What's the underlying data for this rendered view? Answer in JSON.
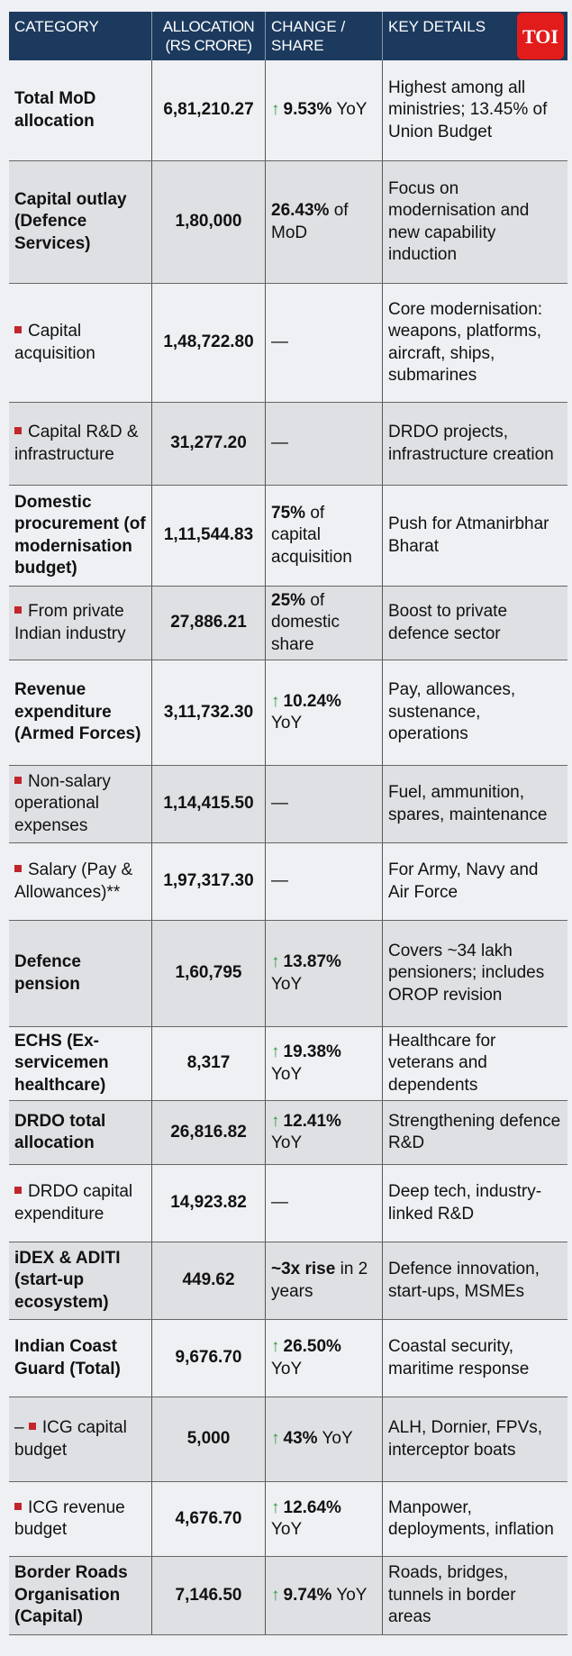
{
  "header": {
    "category": "CATEGORY",
    "allocation": "ALLOCATION (RS CRORE)",
    "change": "CHANGE / SHARE",
    "details": "KEY DETAILS",
    "logo": "TOI"
  },
  "colors": {
    "header_bg": "#1c3a5e",
    "bullet": "#c0262b",
    "arrow": "#2e9a3c",
    "logo_bg": "#e21b1b"
  },
  "rows": [
    {
      "category": "Total MoD allocation",
      "bold": true,
      "sub": false,
      "prefix": "",
      "allocation": "6,81,210.27",
      "up": true,
      "change_bold": "9.53%",
      "change_rest": "YoY",
      "details": "Highest among all ministries; 13.45% of Union Budget"
    },
    {
      "category": "Capital outlay (Defence Services)",
      "bold": true,
      "sub": false,
      "prefix": "",
      "allocation": "1,80,000",
      "up": false,
      "change_bold": "26.43%",
      "change_rest": "of MoD",
      "details": "Focus on modernisation and new capability induction"
    },
    {
      "category": "Capital acquisition",
      "bold": false,
      "sub": true,
      "prefix": "",
      "allocation": "1,48,722.80",
      "up": false,
      "change_bold": "",
      "change_rest": "—",
      "details": "Core modernisation: weapons, platforms, aircraft, ships, submarines"
    },
    {
      "category": "Capital R&D & infrastructure",
      "bold": false,
      "sub": true,
      "prefix": "",
      "allocation": "31,277.20",
      "up": false,
      "change_bold": "",
      "change_rest": "—",
      "details": "DRDO projects, infrastructure creation"
    },
    {
      "category": "Domestic procurement (of modernisation budget)",
      "bold": true,
      "sub": false,
      "prefix": "",
      "allocation": "1,11,544.83",
      "up": false,
      "change_bold": "75%",
      "change_rest": "of capital acquisition",
      "details": "Push for Atmanirbhar Bharat"
    },
    {
      "category": "From private Indian industry",
      "bold": false,
      "sub": true,
      "prefix": "",
      "allocation": "27,886.21",
      "up": false,
      "change_bold": "25%",
      "change_rest": "of domestic share",
      "details": "Boost to private defence sector"
    },
    {
      "category": "Revenue expenditure (Armed Forces)",
      "bold": true,
      "sub": false,
      "prefix": "",
      "allocation": "3,11,732.30",
      "up": true,
      "change_bold": "10.24%",
      "change_rest": "YoY",
      "details": "Pay, allowances, sustenance, operations"
    },
    {
      "category": "Non-salary operational expenses",
      "bold": false,
      "sub": true,
      "prefix": "",
      "allocation": "1,14,415.50",
      "up": false,
      "change_bold": "",
      "change_rest": "—",
      "details": "Fuel, ammunition, spares, maintenance"
    },
    {
      "category": "Salary (Pay & Allowances)**",
      "bold": false,
      "sub": true,
      "prefix": "",
      "allocation": "1,97,317.30",
      "up": false,
      "change_bold": "",
      "change_rest": "—",
      "details": "For Army, Navy and Air Force"
    },
    {
      "category": "Defence pension",
      "bold": true,
      "sub": false,
      "prefix": "",
      "allocation": "1,60,795",
      "up": true,
      "change_bold": "13.87%",
      "change_rest": "YoY",
      "details": "Covers ~34 lakh pensioners; includes OROP revision"
    },
    {
      "category": "ECHS (Ex-servicemen healthcare)",
      "bold": true,
      "sub": false,
      "prefix": "",
      "allocation": "8,317",
      "up": true,
      "change_bold": "19.38%",
      "change_rest": "YoY",
      "details": "Healthcare for veterans and dependents"
    },
    {
      "category": "DRDO total allocation",
      "bold": true,
      "sub": false,
      "prefix": "",
      "allocation": "26,816.82",
      "up": true,
      "change_bold": "12.41%",
      "change_rest": "YoY",
      "details": "Strengthening defence R&D"
    },
    {
      "category": "DRDO capital expenditure",
      "bold": false,
      "sub": true,
      "prefix": "",
      "allocation": "14,923.82",
      "up": false,
      "change_bold": "",
      "change_rest": "—",
      "details": "Deep tech, industry-linked R&D"
    },
    {
      "category": "iDEX & ADITI (start-up ecosystem)",
      "bold": true,
      "sub": false,
      "prefix": "",
      "allocation": "449.62",
      "up": false,
      "change_bold": "~3x rise",
      "change_rest": "in 2 years",
      "details": "Defence innovation, start-ups, MSMEs"
    },
    {
      "category": "Indian Coast Guard (Total)",
      "bold": true,
      "sub": false,
      "prefix": "",
      "allocation": "9,676.70",
      "up": true,
      "change_bold": "26.50%",
      "change_rest": "YoY",
      "details": "Coastal security, maritime response"
    },
    {
      "category": "ICG capital budget",
      "bold": false,
      "sub": true,
      "prefix": "–",
      "allocation": "5,000",
      "up": true,
      "change_bold": "43%",
      "change_rest": "YoY",
      "details": "ALH, Dornier, FPVs, interceptor boats"
    },
    {
      "category": "ICG revenue budget",
      "bold": false,
      "sub": true,
      "prefix": "",
      "allocation": "4,676.70",
      "up": true,
      "change_bold": "12.64%",
      "change_rest": "YoY",
      "details": "Manpower, deployments, inflation"
    },
    {
      "category": "Border Roads Organisation (Capital)",
      "bold": true,
      "sub": false,
      "prefix": "",
      "allocation": "7,146.50",
      "up": true,
      "change_bold": "9.74%",
      "change_rest": "YoY",
      "details": "Roads, bridges, tunnels in border areas"
    }
  ]
}
